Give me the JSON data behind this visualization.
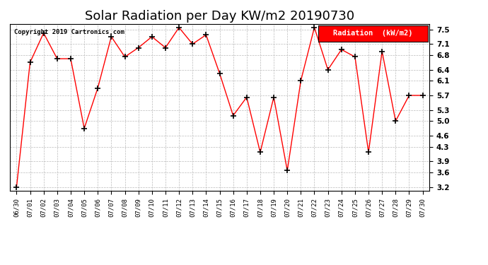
{
  "title": "Solar Radiation per Day KW/m2 20190730",
  "copyright": "Copyright 2019 Cartronics.com",
  "legend_label": "Radiation  (kW/m2)",
  "dates": [
    "06/30",
    "07/01",
    "07/02",
    "07/03",
    "07/04",
    "07/05",
    "07/06",
    "07/07",
    "07/08",
    "07/09",
    "07/10",
    "07/11",
    "07/12",
    "07/13",
    "07/14",
    "07/15",
    "07/16",
    "07/17",
    "07/18",
    "07/19",
    "07/20",
    "07/21",
    "07/22",
    "07/23",
    "07/24",
    "07/25",
    "07/26",
    "07/27",
    "07/28",
    "07/29",
    "07/30"
  ],
  "values": [
    3.2,
    6.6,
    7.4,
    6.7,
    6.7,
    4.8,
    5.9,
    7.3,
    6.75,
    7.0,
    7.3,
    7.0,
    7.55,
    7.1,
    7.35,
    6.3,
    5.15,
    5.65,
    4.15,
    5.65,
    3.65,
    6.1,
    7.55,
    6.4,
    6.95,
    6.75,
    4.15,
    6.9,
    5.0,
    5.7,
    5.7
  ],
  "line_color": "red",
  "marker": "+",
  "marker_color": "black",
  "bg_color": "white",
  "grid_color": "#bbbbbb",
  "ylim": [
    3.1,
    7.65
  ],
  "yticks": [
    3.2,
    3.6,
    3.9,
    4.3,
    4.6,
    5.0,
    5.3,
    5.7,
    6.1,
    6.4,
    6.8,
    7.1,
    7.5
  ],
  "title_fontsize": 13,
  "legend_bg": "red",
  "legend_text_color": "white"
}
